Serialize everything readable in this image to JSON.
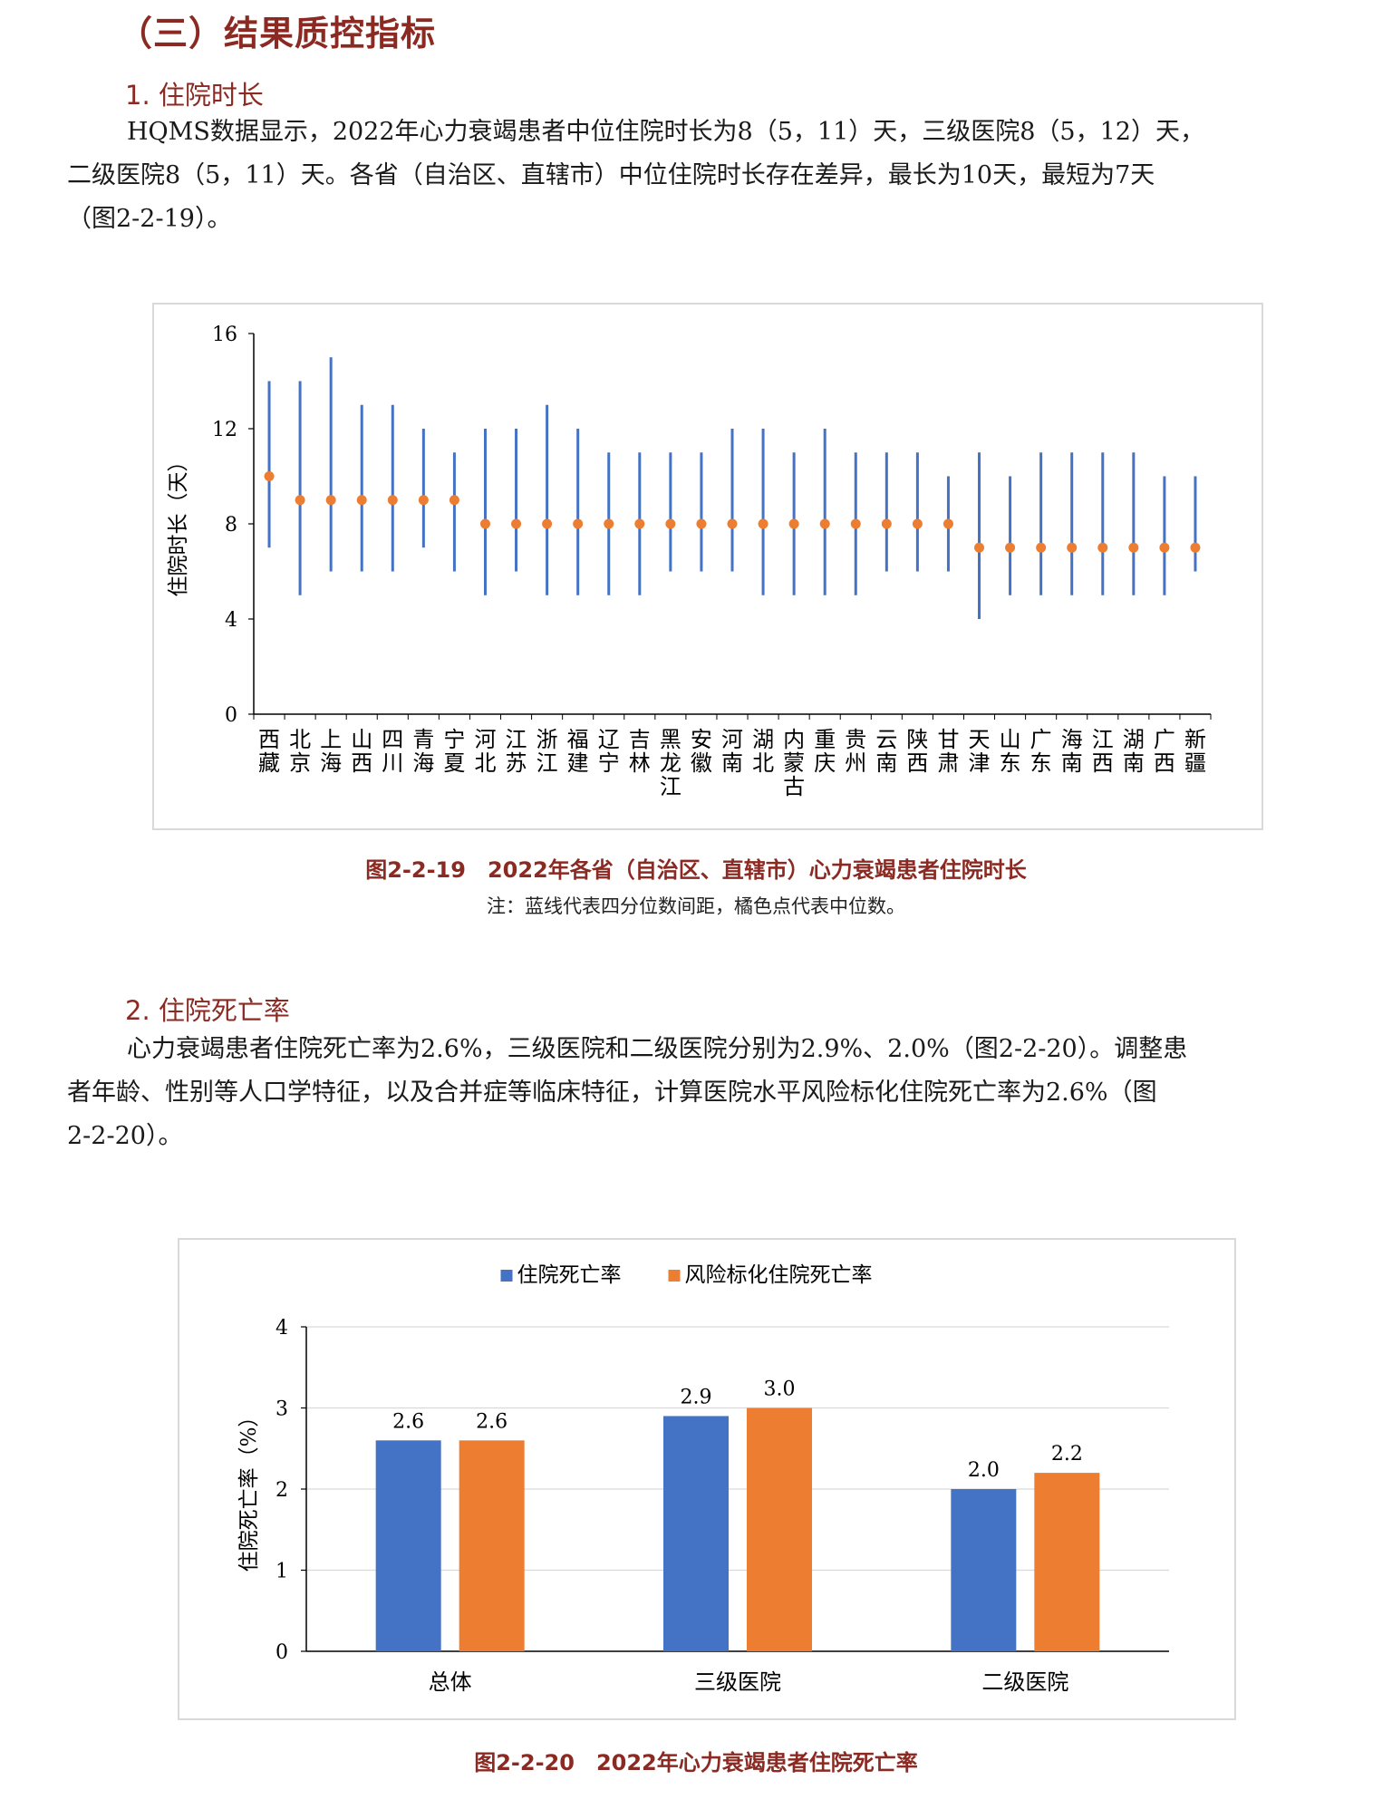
{
  "section_title": "（三）结果质控指标",
  "subsection1": {
    "title": "1.  住院时长",
    "lines": [
      "HQMS数据显示，2022年心力衰竭患者中位住院时长为8（5，11）天，三级医院8（5，12）天，",
      "二级医院8（5，11）天。各省（自治区、直辖市）中位住院时长存在差异，最长为10天，最短为7天",
      "（图2-2-19）。"
    ]
  },
  "figure1": {
    "caption": "图2-2-19　2022年各省（自治区、直辖市）心力衰竭患者住院时长",
    "note": "注：蓝线代表四分位数间距，橘色点代表中位数。"
  },
  "subsection2": {
    "title": "2.  住院死亡率",
    "lines": [
      "心力衰竭患者住院死亡率为2.6%，三级医院和二级医院分别为2.9%、2.0%（图2-2-20）。调整患",
      "者年龄、性别等人口学特征，以及合并症等临床特征，计算医院水平风险标化住院死亡率为2.6%（图",
      "2-2-20）。"
    ]
  },
  "figure2": {
    "caption": "图2-2-20　2022年心力衰竭患者住院死亡率"
  },
  "chart_data": [
    {
      "type": "scatter",
      "subtype": "median-with-interquartile-range",
      "ylabel": "住院时长（天）",
      "ylim": [
        0,
        16
      ],
      "yticks": [
        0,
        4,
        8,
        12,
        16
      ],
      "grid": false,
      "colors": {
        "range_line": "#4472c4",
        "median_point": "#ed7d31"
      },
      "categories": [
        "西藏",
        "北京",
        "上海",
        "山西",
        "四川",
        "青海",
        "宁夏",
        "河北",
        "江苏",
        "浙江",
        "福建",
        "辽宁",
        "吉林",
        "黑龙江",
        "安徽",
        "河南",
        "湖北",
        "内蒙古",
        "重庆",
        "贵州",
        "云南",
        "陕西",
        "甘肃",
        "天津",
        "山东",
        "广东",
        "海南",
        "江西",
        "湖南",
        "广西",
        "新疆"
      ],
      "median": [
        10,
        9,
        9,
        9,
        9,
        9,
        9,
        8,
        8,
        8,
        8,
        8,
        8,
        8,
        8,
        8,
        8,
        8,
        8,
        8,
        8,
        8,
        8,
        7,
        7,
        7,
        7,
        7,
        7,
        7,
        7
      ],
      "q1": [
        7,
        5,
        6,
        6,
        6,
        7,
        6,
        5,
        6,
        5,
        5,
        5,
        5,
        6,
        6,
        6,
        5,
        5,
        5,
        5,
        6,
        6,
        6,
        4,
        5,
        5,
        5,
        5,
        5,
        5,
        6
      ],
      "q3": [
        14,
        14,
        15,
        13,
        13,
        12,
        11,
        12,
        12,
        13,
        12,
        11,
        11,
        11,
        11,
        12,
        12,
        11,
        12,
        11,
        11,
        11,
        10,
        11,
        10,
        11,
        11,
        11,
        11,
        10,
        10
      ]
    },
    {
      "type": "bar",
      "ylabel": "住院死亡率（%）",
      "ylim": [
        0,
        4
      ],
      "yticks": [
        0,
        1,
        2,
        3,
        4
      ],
      "grid": true,
      "legend": "top",
      "categories": [
        "总体",
        "三级医院",
        "二级医院"
      ],
      "series": [
        {
          "name": "住院死亡率",
          "color": "#4472c4",
          "values": [
            2.6,
            2.9,
            2.0
          ]
        },
        {
          "name": "风险标化住院死亡率",
          "color": "#ed7d31",
          "values": [
            2.6,
            3.0,
            2.2
          ]
        }
      ]
    }
  ]
}
